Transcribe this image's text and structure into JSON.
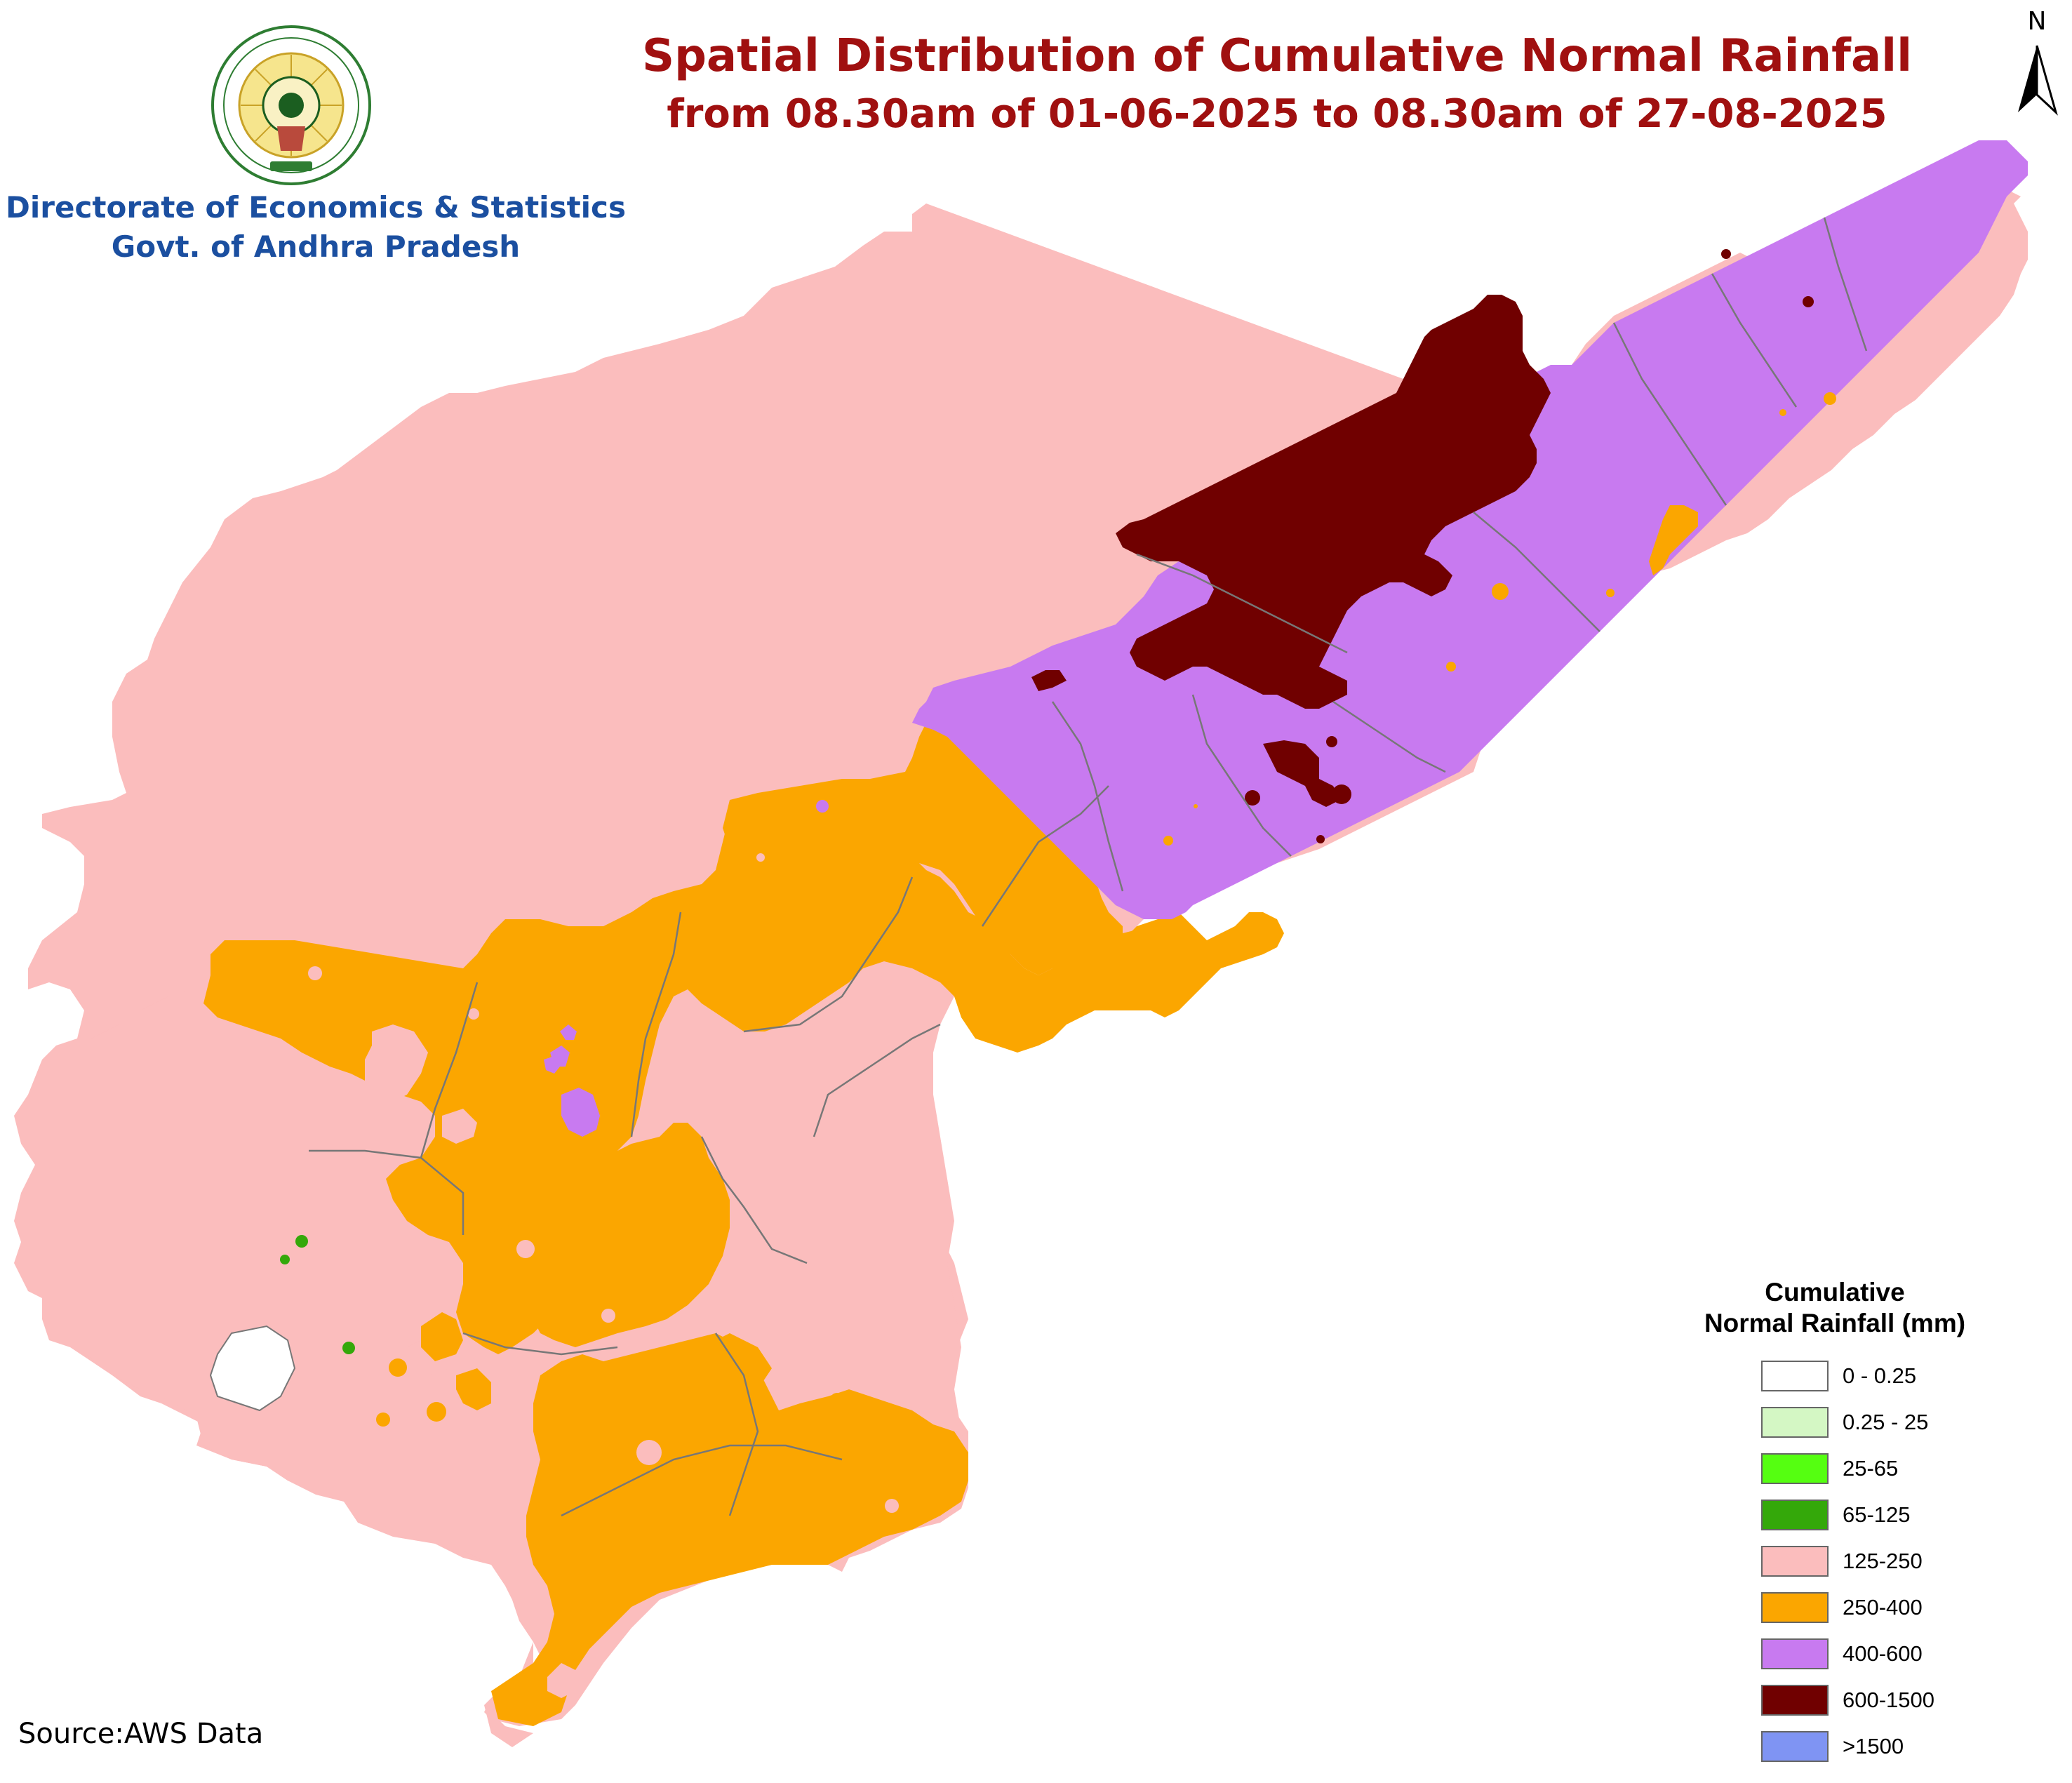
{
  "title": {
    "line1": "Spatial Distribution of Cumulative Normal Rainfall",
    "line2": "from 08.30am of 01-06-2025 to 08.30am of 27-08-2025"
  },
  "organization": {
    "line1": "Directorate of Economics & Statistics",
    "line2": "Govt. of Andhra Pradesh"
  },
  "emblem": {
    "icon": "andhra-pradesh-state-emblem"
  },
  "north_arrow": {
    "letter": "N",
    "icon": "north-arrow-icon"
  },
  "legend": {
    "title_line1": "Cumulative",
    "title_line2": "Normal Rainfall (mm)",
    "items": [
      {
        "label": "0 - 0.25",
        "color": "#ffffff"
      },
      {
        "label": "0.25 - 25",
        "color": "#d4f7c4"
      },
      {
        "label": "25-65",
        "color": "#55ff11"
      },
      {
        "label": "65-125",
        "color": "#34a80a"
      },
      {
        "label": "125-250",
        "color": "#fbbdbd"
      },
      {
        "label": "250-400",
        "color": "#fba600"
      },
      {
        "label": "400-600",
        "color": "#c87af0"
      },
      {
        "label": "600-1500",
        "color": "#700000"
      },
      {
        "label": ">1500",
        "color": "#7f94f3"
      }
    ]
  },
  "source": "Source:AWS Data",
  "colors": {
    "title": "#a01010",
    "organization": "#1b4fa0",
    "boundary": "#777777"
  }
}
